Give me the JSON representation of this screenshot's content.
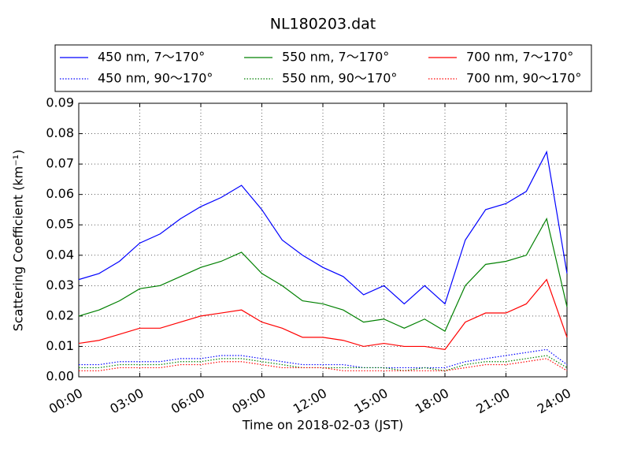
{
  "chart_data": {
    "type": "line",
    "title": "NL180203.dat",
    "xlabel": "Time on 2018-02-03 (JST)",
    "ylabel": "Scattering Coefficient (km⁻¹)",
    "x": [
      0,
      1,
      2,
      3,
      4,
      5,
      6,
      7,
      8,
      9,
      10,
      11,
      12,
      13,
      14,
      15,
      16,
      17,
      18,
      19,
      20,
      21,
      22,
      23,
      24
    ],
    "xlim": [
      0,
      24
    ],
    "xticks": [
      {
        "value": 0,
        "label": "00:00"
      },
      {
        "value": 3,
        "label": "03:00"
      },
      {
        "value": 6,
        "label": "06:00"
      },
      {
        "value": 9,
        "label": "09:00"
      },
      {
        "value": 12,
        "label": "12:00"
      },
      {
        "value": 15,
        "label": "15:00"
      },
      {
        "value": 18,
        "label": "18:00"
      },
      {
        "value": 21,
        "label": "21:00"
      },
      {
        "value": 24,
        "label": "24:00"
      }
    ],
    "ylim": [
      0,
      0.09
    ],
    "yticks": [
      {
        "value": 0,
        "label": "0.00"
      },
      0.01,
      0.02,
      0.03,
      0.04,
      0.05,
      0.06,
      0.07,
      0.08,
      0.09
    ],
    "grid": true,
    "legend": "top",
    "series": [
      {
        "name": "450 nm, 7～170°",
        "color": "#0000ff",
        "linestyle": "solid",
        "values": [
          0.032,
          0.034,
          0.038,
          0.044,
          0.047,
          0.052,
          0.056,
          0.059,
          0.063,
          0.055,
          0.045,
          0.04,
          0.036,
          0.033,
          0.027,
          0.03,
          0.024,
          0.03,
          0.024,
          0.045,
          0.055,
          0.057,
          0.061,
          0.074,
          0.034
        ]
      },
      {
        "name": "450 nm, 90～170°",
        "color": "#0000ff",
        "linestyle": "dotted",
        "values": [
          0.004,
          0.004,
          0.005,
          0.005,
          0.005,
          0.006,
          0.006,
          0.007,
          0.007,
          0.006,
          0.005,
          0.004,
          0.004,
          0.004,
          0.003,
          0.003,
          0.003,
          0.003,
          0.003,
          0.005,
          0.006,
          0.007,
          0.008,
          0.009,
          0.004
        ]
      },
      {
        "name": "550 nm, 7～170°",
        "color": "#008000",
        "linestyle": "solid",
        "values": [
          0.02,
          0.022,
          0.025,
          0.029,
          0.03,
          0.033,
          0.036,
          0.038,
          0.041,
          0.034,
          0.03,
          0.025,
          0.024,
          0.022,
          0.018,
          0.019,
          0.016,
          0.019,
          0.015,
          0.03,
          0.037,
          0.038,
          0.04,
          0.052,
          0.023
        ]
      },
      {
        "name": "550 nm, 90～170°",
        "color": "#008000",
        "linestyle": "dotted",
        "values": [
          0.003,
          0.003,
          0.004,
          0.004,
          0.004,
          0.005,
          0.005,
          0.006,
          0.006,
          0.005,
          0.004,
          0.003,
          0.003,
          0.003,
          0.003,
          0.003,
          0.002,
          0.003,
          0.002,
          0.004,
          0.005,
          0.005,
          0.006,
          0.007,
          0.003
        ]
      },
      {
        "name": "700 nm, 7～170°",
        "color": "#ff0000",
        "linestyle": "solid",
        "values": [
          0.011,
          0.012,
          0.014,
          0.016,
          0.016,
          0.018,
          0.02,
          0.021,
          0.022,
          0.018,
          0.016,
          0.013,
          0.013,
          0.012,
          0.01,
          0.011,
          0.01,
          0.01,
          0.009,
          0.018,
          0.021,
          0.021,
          0.024,
          0.032,
          0.013
        ]
      },
      {
        "name": "700 nm, 90～170°",
        "color": "#ff0000",
        "linestyle": "dotted",
        "values": [
          0.002,
          0.002,
          0.003,
          0.003,
          0.003,
          0.004,
          0.004,
          0.005,
          0.005,
          0.004,
          0.003,
          0.003,
          0.003,
          0.002,
          0.002,
          0.002,
          0.002,
          0.002,
          0.002,
          0.003,
          0.004,
          0.004,
          0.005,
          0.006,
          0.002
        ]
      }
    ]
  }
}
